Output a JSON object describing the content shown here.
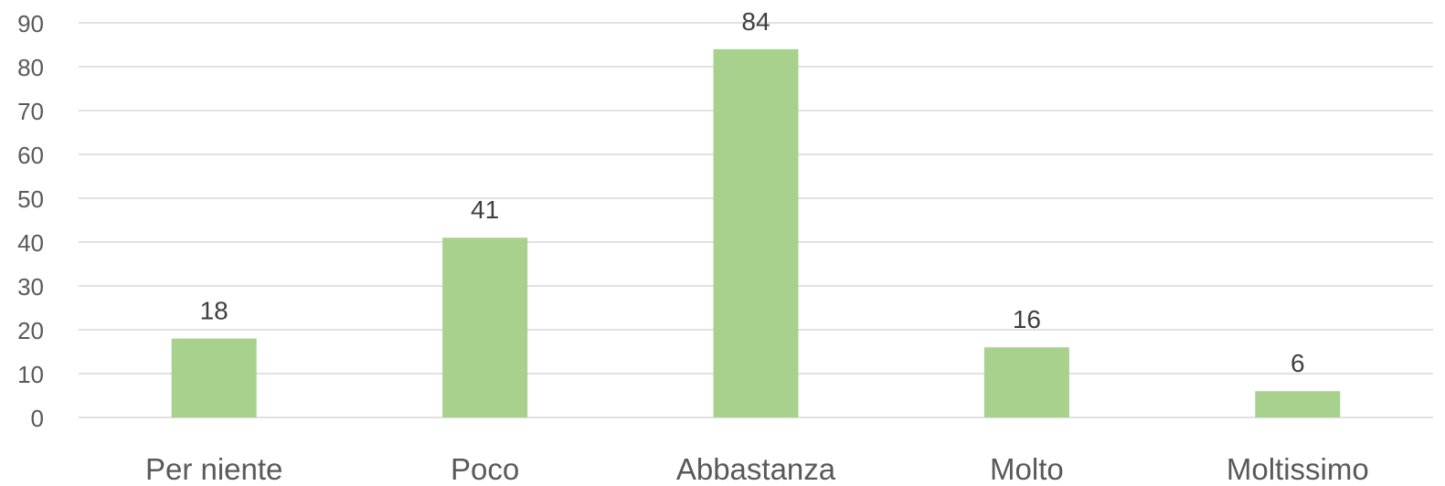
{
  "chart_data": {
    "type": "bar",
    "title": "",
    "xlabel": "",
    "ylabel": "",
    "categories": [
      "Per niente",
      "Poco",
      "Abbastanza",
      "Molto",
      "Moltissimo"
    ],
    "values": [
      18,
      41,
      84,
      16,
      6
    ],
    "ylim": [
      0,
      90
    ],
    "yticks": [
      0,
      10,
      20,
      30,
      40,
      50,
      60,
      70,
      80,
      90
    ],
    "grid": true,
    "legend": "none",
    "data_labels": true,
    "bar_color": "#a9d18e",
    "grid_color": "#d9d9d9",
    "tick_color": "#595959",
    "label_color": "#404040"
  }
}
